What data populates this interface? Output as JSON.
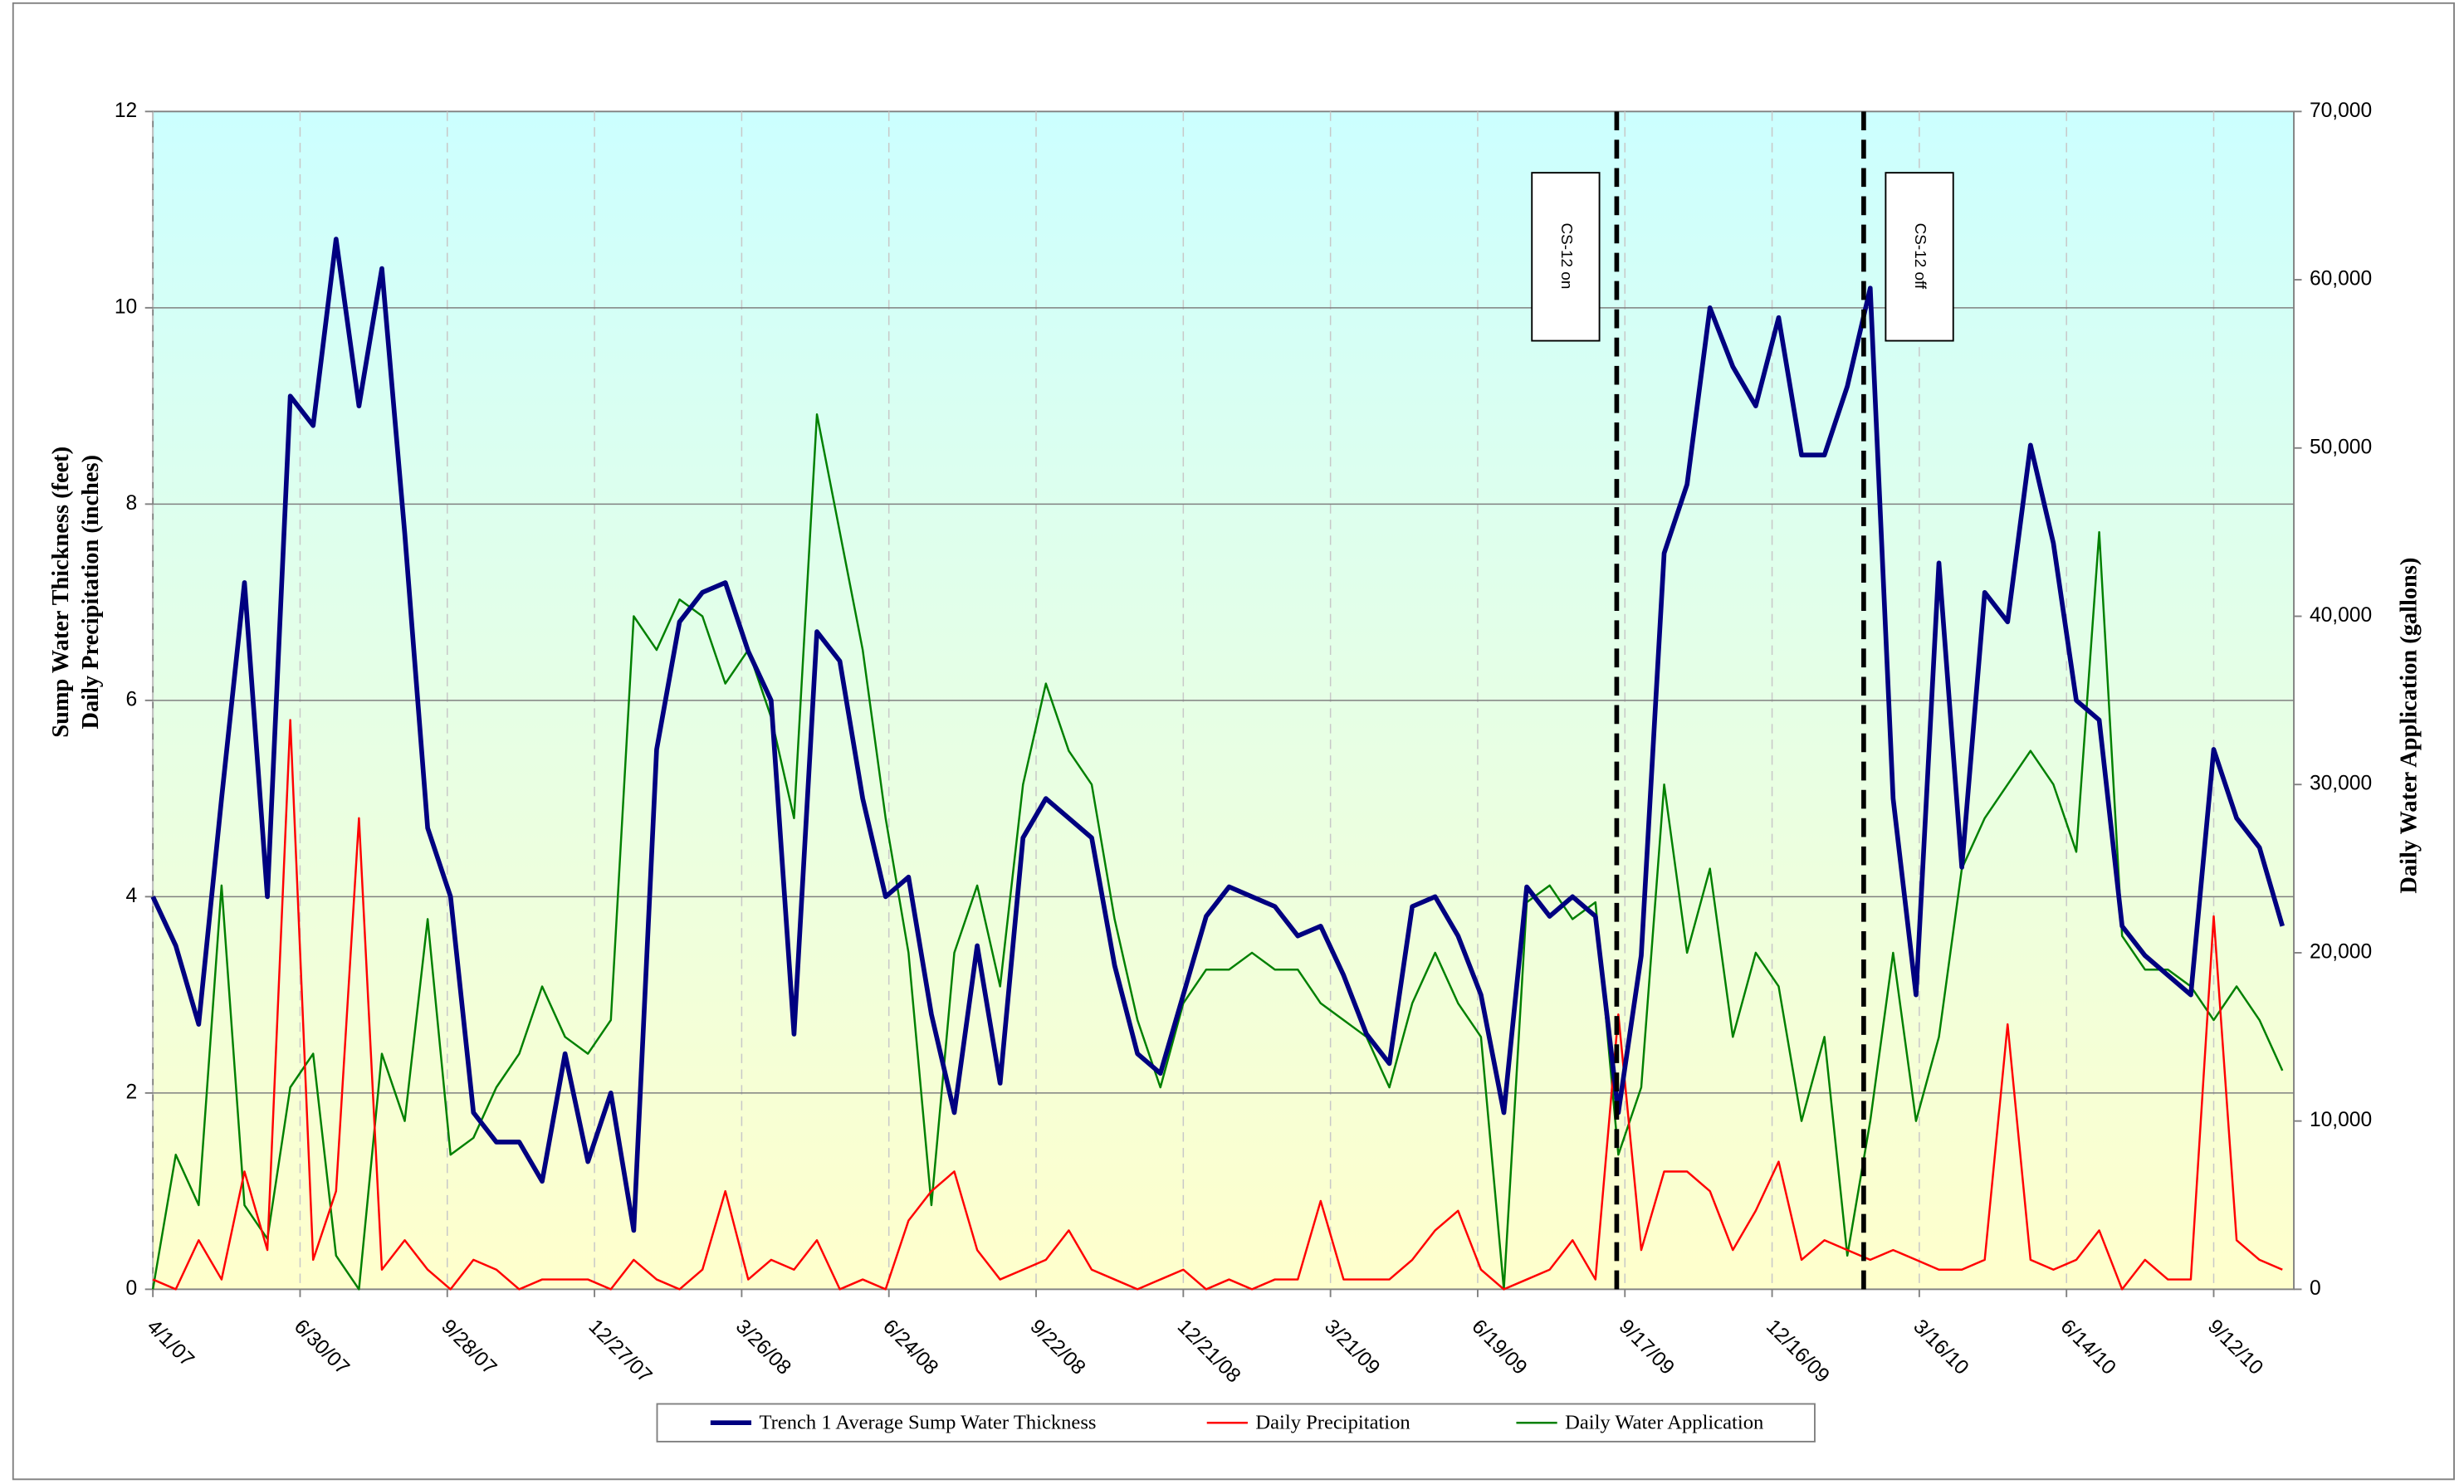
{
  "chart_data": {
    "type": "line",
    "y_label_lines": [
      "Sump Water Thickness (feet)",
      "Daily Precipitation (inches)"
    ],
    "y2_label": "Daily Water Application (gallons)",
    "x": [
      "4/1/07",
      "4/15/07",
      "4/29/07",
      "5/13/07",
      "5/27/07",
      "6/10/07",
      "6/24/07",
      "7/8/07",
      "7/22/07",
      "8/5/07",
      "8/19/07",
      "9/2/07",
      "9/16/07",
      "9/30/07",
      "10/14/07",
      "10/28/07",
      "11/11/07",
      "11/25/07",
      "12/9/07",
      "12/23/07",
      "1/6/08",
      "1/20/08",
      "2/3/08",
      "2/17/08",
      "3/2/08",
      "3/16/08",
      "3/30/08",
      "4/13/08",
      "4/27/08",
      "5/11/08",
      "5/25/08",
      "6/8/08",
      "6/22/08",
      "7/6/08",
      "7/20/08",
      "8/3/08",
      "8/17/08",
      "8/31/08",
      "9/14/08",
      "9/28/08",
      "10/12/08",
      "10/26/08",
      "11/9/08",
      "11/23/08",
      "12/7/08",
      "12/21/08",
      "1/4/09",
      "1/18/09",
      "2/1/09",
      "2/15/09",
      "3/1/09",
      "3/15/09",
      "3/29/09",
      "4/12/09",
      "4/26/09",
      "5/10/09",
      "5/24/09",
      "6/7/09",
      "6/21/09",
      "7/5/09",
      "7/19/09",
      "8/2/09",
      "8/16/09",
      "8/30/09",
      "9/13/09",
      "9/27/09",
      "10/11/09",
      "10/25/09",
      "11/8/09",
      "11/22/09",
      "12/6/09",
      "12/20/09",
      "1/3/10",
      "1/17/10",
      "1/31/10",
      "2/14/10",
      "2/28/10",
      "3/14/10",
      "3/28/10",
      "4/11/10",
      "4/25/10",
      "5/9/10",
      "5/23/10",
      "6/6/10",
      "6/20/10",
      "7/4/10",
      "7/18/10",
      "8/1/10",
      "8/15/10",
      "8/29/10",
      "9/12/10",
      "9/26/10",
      "10/10/10",
      "10/24/10"
    ],
    "series": [
      {
        "name": "Trench 1 Average Sump Water Thickness",
        "color": "#000080",
        "axis": "y",
        "values": [
          4.0,
          3.5,
          2.7,
          5.0,
          7.2,
          4.0,
          9.1,
          8.8,
          10.7,
          9.0,
          10.4,
          7.7,
          4.7,
          4.0,
          1.8,
          1.5,
          1.5,
          1.1,
          2.4,
          1.3,
          2.0,
          0.6,
          5.5,
          6.8,
          7.1,
          7.2,
          6.5,
          6.0,
          2.6,
          6.7,
          6.4,
          5.0,
          4.0,
          4.2,
          2.8,
          1.8,
          3.5,
          2.1,
          4.6,
          5.0,
          4.8,
          4.6,
          3.3,
          2.4,
          2.2,
          3.0,
          3.8,
          4.1,
          4.0,
          3.9,
          3.6,
          3.7,
          3.2,
          2.6,
          2.3,
          3.9,
          4.0,
          3.6,
          3.0,
          1.8,
          4.1,
          3.8,
          4.0,
          3.8,
          1.8,
          3.4,
          7.5,
          8.2,
          10.0,
          9.4,
          9.0,
          9.9,
          8.5,
          8.5,
          9.2,
          10.2,
          5.0,
          3.0,
          7.4,
          4.3,
          7.1,
          6.8,
          8.6,
          7.6,
          6.0,
          5.8,
          3.7,
          3.4,
          3.2,
          3.0,
          5.5,
          4.8,
          4.5,
          3.7
        ]
      },
      {
        "name": "Daily Precipitation",
        "color": "#ff0000",
        "axis": "y",
        "values": [
          0.1,
          0,
          0.5,
          0.1,
          1.2,
          0.4,
          5.8,
          0.3,
          1.0,
          4.8,
          0.2,
          0.5,
          0.2,
          0,
          0.3,
          0.2,
          0,
          0.1,
          0.1,
          0.1,
          0,
          0.3,
          0.1,
          0,
          0.2,
          1.0,
          0.1,
          0.3,
          0.2,
          0.5,
          0,
          0.1,
          0,
          0.7,
          1.0,
          1.2,
          0.4,
          0.1,
          0.2,
          0.3,
          0.6,
          0.2,
          0.1,
          0,
          0.1,
          0.2,
          0,
          0.1,
          0,
          0.1,
          0.1,
          0.9,
          0.1,
          0.1,
          0.1,
          0.3,
          0.6,
          0.8,
          0.2,
          0,
          0.1,
          0.2,
          0.5,
          0.1,
          2.8,
          0.4,
          1.2,
          1.2,
          1.0,
          0.4,
          0.8,
          1.3,
          0.3,
          0.5,
          0.4,
          0.3,
          0.4,
          0.3,
          0.2,
          0.2,
          0.3,
          2.7,
          0.3,
          0.2,
          0.3,
          0.6,
          0,
          0.3,
          0.1,
          0.1,
          3.8,
          0.5,
          0.3,
          0.2
        ]
      },
      {
        "name": "Daily Water Application",
        "color": "#008000",
        "axis": "y2",
        "values": [
          0,
          8000,
          5000,
          24000,
          5000,
          3000,
          12000,
          14000,
          2000,
          0,
          14000,
          10000,
          22000,
          8000,
          9000,
          12000,
          14000,
          18000,
          15000,
          14000,
          16000,
          40000,
          38000,
          41000,
          40000,
          36000,
          38000,
          34000,
          28000,
          52000,
          45000,
          38000,
          28000,
          20000,
          5000,
          20000,
          24000,
          18000,
          30000,
          36000,
          32000,
          30000,
          22000,
          16000,
          12000,
          17000,
          19000,
          19000,
          20000,
          19000,
          19000,
          17000,
          16000,
          15000,
          12000,
          17000,
          20000,
          17000,
          15000,
          0,
          23000,
          24000,
          22000,
          23000,
          8000,
          12000,
          30000,
          20000,
          25000,
          15000,
          20000,
          18000,
          10000,
          15000,
          2000,
          10000,
          20000,
          10000,
          15000,
          25000,
          28000,
          30000,
          32000,
          30000,
          26000,
          45000,
          21000,
          19000,
          19000,
          18000,
          16000,
          18000,
          16000,
          13000
        ]
      }
    ],
    "xlim": [
      "4/1/07",
      "10/31/10"
    ],
    "xticks": [
      "4/1/07",
      "6/30/07",
      "9/28/07",
      "12/27/07",
      "3/26/08",
      "6/24/08",
      "9/22/08",
      "12/21/08",
      "3/21/09",
      "6/19/09",
      "9/17/09",
      "12/16/09",
      "3/16/10",
      "6/14/10",
      "9/12/10"
    ],
    "ylim": [
      0,
      12
    ],
    "yticks": [
      0,
      2,
      4,
      6,
      8,
      10,
      12
    ],
    "y2lim": [
      0,
      70000
    ],
    "y2ticks": [
      0,
      {
        "value": 10000,
        "label": "10,000"
      },
      {
        "value": 20000,
        "label": "20,000"
      },
      {
        "value": 30000,
        "label": "30,000"
      },
      {
        "value": 40000,
        "label": "40,000"
      },
      {
        "value": 50000,
        "label": "50,000"
      },
      {
        "value": 60000,
        "label": "60,000"
      },
      {
        "value": 70000,
        "label": "70,000"
      }
    ],
    "grid": true,
    "legend": "bottom",
    "annotations": [
      {
        "text": "CS-12 on",
        "x": "9/12/09"
      },
      {
        "text": "CS-12 off",
        "x": "2/10/10"
      }
    ]
  }
}
